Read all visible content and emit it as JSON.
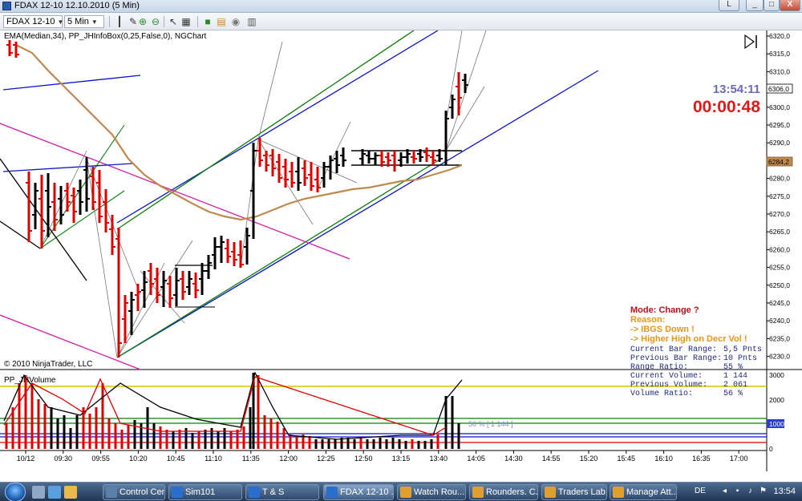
{
  "window": {
    "title": "FDAX 12-10  12.10.2010 (5 Min)",
    "controls": {
      "minimize": "_",
      "maximize": "□",
      "close": "X",
      "restore": "L"
    }
  },
  "toolbar": {
    "instrument": "FDAX 12-10",
    "interval": "5 Min",
    "icons": [
      "bar-style-icon",
      "pen-icon",
      "zoom-in-icon",
      "zoom-out-icon",
      "cursor-icon",
      "properties-icon",
      "data-box-icon",
      "indicators-icon",
      "strategies-icon",
      "chart-trader-icon"
    ]
  },
  "chart": {
    "indicator_label": "EMA(Median,34), PP_JHInfoBox(0,25,False,0), NGChart",
    "copyright": "© 2010 NinjaTrader, LLC",
    "time_display": "13:54:11",
    "countdown": "00:00:48",
    "last_price_tag": "6306,0",
    "ema_price_tag": "6284,2",
    "price_axis": [
      "6320,0",
      "6315,0",
      "6310,0",
      "6305,0",
      "6300,0",
      "6295,0",
      "6290,0",
      "6285,0",
      "6280,0",
      "6275,0",
      "6270,0",
      "6265,0",
      "6260,0",
      "6255,0",
      "6250,0",
      "6245,0",
      "6240,0",
      "6235,0",
      "6230,0"
    ],
    "time_axis": [
      "10/12",
      "09:30",
      "09:55",
      "10:20",
      "10:45",
      "11:10",
      "11:35",
      "12:00",
      "12:25",
      "12:50",
      "13:15",
      "13:40",
      "14:05",
      "14:30",
      "14:55",
      "15:20",
      "15:45",
      "16:10",
      "16:35",
      "17:00"
    ],
    "colors": {
      "up_bar": "#000000",
      "down_bar": "#dd0000",
      "ema": "#c08a4e",
      "channel_blue": "#0a14c8",
      "channel_green": "#0a7d0a",
      "channel_magenta": "#d21ea8",
      "volume_yellow": "#d8c400"
    }
  },
  "info_box": {
    "mode": "Mode: Change ?",
    "reason_label": "Reason:",
    "reason_1": "->  IBGS Down !",
    "reason_2": "->  Higher High on Decr Vol !",
    "rows": [
      {
        "label": "Current Bar Range:",
        "value": "5,5 Pnts"
      },
      {
        "label": "Previous Bar Range:",
        "value": "10 Pnts"
      },
      {
        "label": "Range Ratio:",
        "value": "55 %"
      },
      {
        "label": "Current Volume:",
        "value": "1 144"
      },
      {
        "label": "Previous Volume:",
        "value": "2 061"
      },
      {
        "label": "Volume Ratio:",
        "value": "56 %"
      }
    ]
  },
  "volume_panel": {
    "label": "PP_JHVolume",
    "axis": [
      "3000",
      "2000",
      "1000",
      "0"
    ],
    "level_tag": "1000",
    "ratio_label": "56 % [ 1 144 ]"
  },
  "taskbar": {
    "buttons": [
      "Control Cen...",
      "Sim101",
      "T & S",
      "FDAX 12-10 ...",
      "Watch Rou...",
      "Rounders. C...",
      "Traders Lab...",
      "Manage Att..."
    ],
    "active_index": 3,
    "language": "DE",
    "clock": "13:54"
  }
}
